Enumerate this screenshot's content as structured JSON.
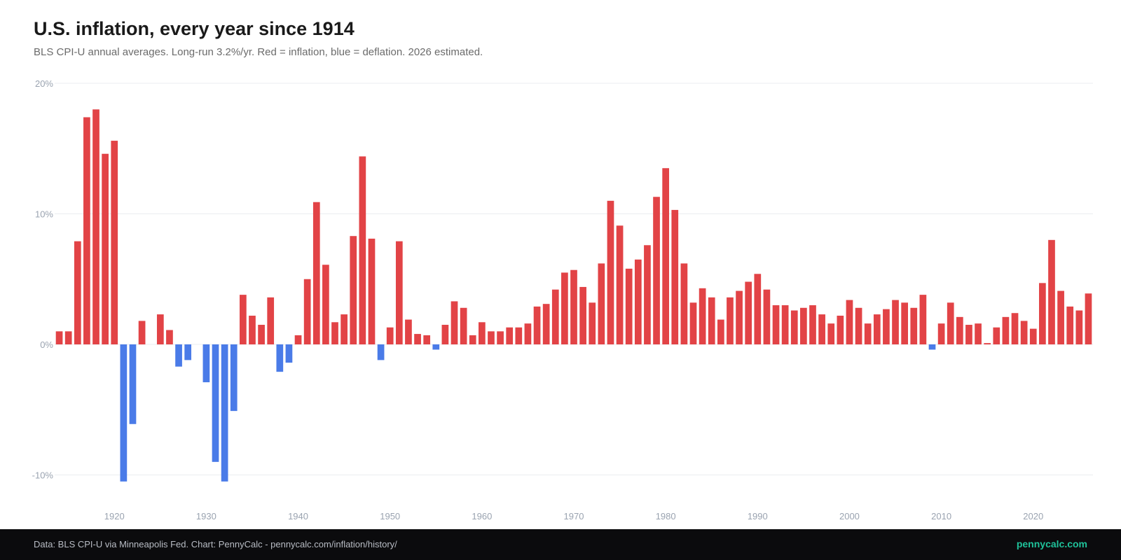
{
  "title": "U.S. inflation, every year since 1914",
  "subtitle": "BLS CPI-U annual averages. Long-run 3.2%/yr. Red = inflation, blue = deflation. 2026 estimated.",
  "footer": {
    "credit": "Data: BLS CPI-U via Minneapolis Fed. Chart: PennyCalc - pennycalc.com/inflation/history/",
    "brand": "pennycalc.com"
  },
  "colors": {
    "inflation": "#e24346",
    "deflation": "#4a7be8",
    "brand": "#1fc29a"
  },
  "chart_data": {
    "type": "bar",
    "title": "U.S. inflation, every year since 1914",
    "subtitle": "BLS CPI-U annual averages. Long-run 3.2%/yr. Red = inflation, blue = deflation. 2026 estimated.",
    "xlabel": "",
    "ylabel": "",
    "ylim": [
      -12.5,
      20
    ],
    "yticks": [
      20,
      10,
      0,
      -10
    ],
    "ytick_labels": [
      "20%",
      "10%",
      "0%",
      "-10%"
    ],
    "xticks": [
      1920,
      1930,
      1940,
      1950,
      1960,
      1970,
      1980,
      1990,
      2000,
      2010,
      2020
    ],
    "xtick_labels": [
      "1920",
      "1930",
      "1940",
      "1950",
      "1960",
      "1970",
      "1980",
      "1990",
      "2000",
      "2010",
      "2020"
    ],
    "grid": true,
    "legend": "none",
    "x": [
      1914,
      1915,
      1916,
      1917,
      1918,
      1919,
      1920,
      1921,
      1922,
      1923,
      1924,
      1925,
      1926,
      1927,
      1928,
      1929,
      1930,
      1931,
      1932,
      1933,
      1934,
      1935,
      1936,
      1937,
      1938,
      1939,
      1940,
      1941,
      1942,
      1943,
      1944,
      1945,
      1946,
      1947,
      1948,
      1949,
      1950,
      1951,
      1952,
      1953,
      1954,
      1955,
      1956,
      1957,
      1958,
      1959,
      1960,
      1961,
      1962,
      1963,
      1964,
      1965,
      1966,
      1967,
      1968,
      1969,
      1970,
      1971,
      1972,
      1973,
      1974,
      1975,
      1976,
      1977,
      1978,
      1979,
      1980,
      1981,
      1982,
      1983,
      1984,
      1985,
      1986,
      1987,
      1988,
      1989,
      1990,
      1991,
      1992,
      1993,
      1994,
      1995,
      1996,
      1997,
      1998,
      1999,
      2000,
      2001,
      2002,
      2003,
      2004,
      2005,
      2006,
      2007,
      2008,
      2009,
      2010,
      2011,
      2012,
      2013,
      2014,
      2015,
      2016,
      2017,
      2018,
      2019,
      2020,
      2021,
      2022,
      2023,
      2024,
      2025,
      2026
    ],
    "values": [
      1.0,
      1.0,
      7.9,
      17.4,
      18.0,
      14.6,
      15.6,
      -10.5,
      -6.1,
      1.8,
      0.0,
      2.3,
      1.1,
      -1.7,
      -1.2,
      0.0,
      -2.9,
      -9.0,
      -10.5,
      -5.1,
      3.8,
      2.2,
      1.5,
      3.6,
      -2.1,
      -1.4,
      0.7,
      5.0,
      10.9,
      6.1,
      1.7,
      2.3,
      8.3,
      14.4,
      8.1,
      -1.2,
      1.3,
      7.9,
      1.9,
      0.8,
      0.7,
      -0.4,
      1.5,
      3.3,
      2.8,
      0.7,
      1.7,
      1.0,
      1.0,
      1.3,
      1.3,
      1.6,
      2.9,
      3.1,
      4.2,
      5.5,
      5.7,
      4.4,
      3.2,
      6.2,
      11.0,
      9.1,
      5.8,
      6.5,
      7.6,
      11.3,
      13.5,
      10.3,
      6.2,
      3.2,
      4.3,
      3.6,
      1.9,
      3.6,
      4.1,
      4.8,
      5.4,
      4.2,
      3.0,
      3.0,
      2.6,
      2.8,
      3.0,
      2.3,
      1.6,
      2.2,
      3.4,
      2.8,
      1.6,
      2.3,
      2.7,
      3.4,
      3.2,
      2.8,
      3.8,
      -0.4,
      1.6,
      3.2,
      2.1,
      1.5,
      1.6,
      0.1,
      1.3,
      2.1,
      2.4,
      1.8,
      1.2,
      4.7,
      8.0,
      4.1,
      2.9,
      2.6,
      3.9
    ]
  }
}
